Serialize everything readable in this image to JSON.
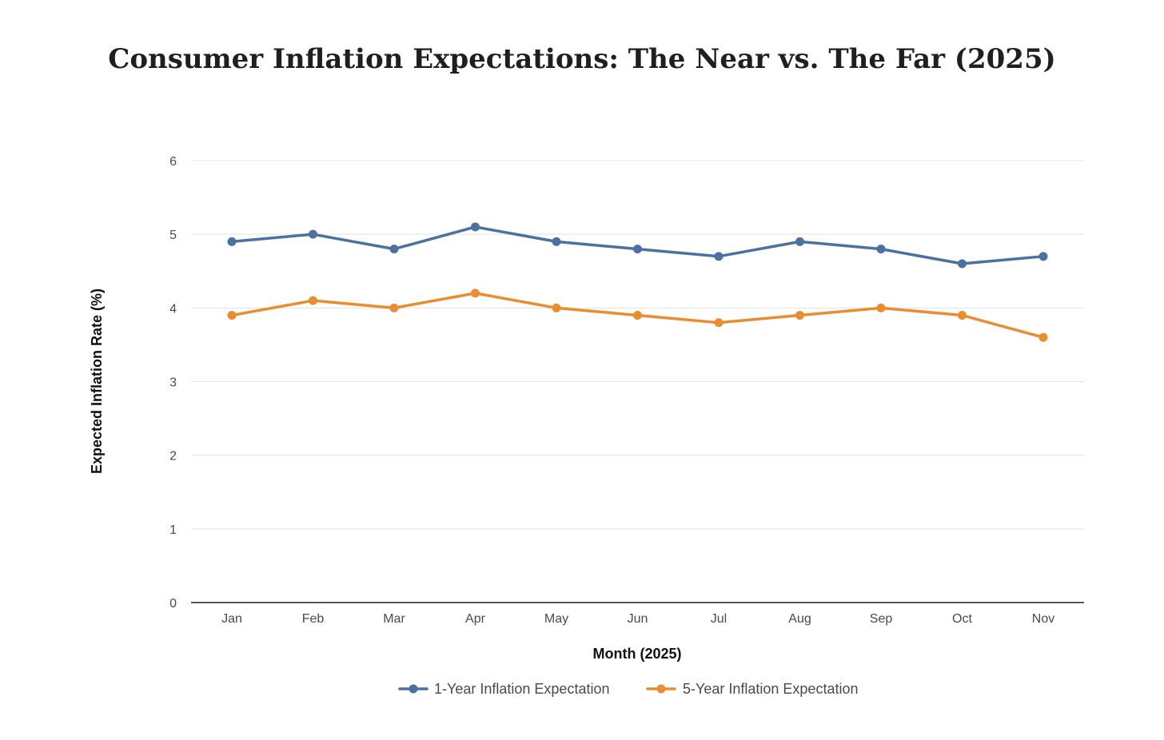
{
  "chart_data": {
    "type": "line",
    "title": "Consumer Inflation Expectations: The Near vs. The Far (2025)",
    "xlabel": "Month (2025)",
    "ylabel": "Expected Inflation Rate (%)",
    "categories": [
      "Jan",
      "Feb",
      "Mar",
      "Apr",
      "May",
      "Jun",
      "Jul",
      "Aug",
      "Sep",
      "Oct",
      "Nov"
    ],
    "ylim": [
      0,
      6
    ],
    "yticks": [
      0,
      1,
      2,
      3,
      4,
      5,
      6
    ],
    "grid": true,
    "legend_position": "bottom",
    "series": [
      {
        "name": "1-Year Inflation Expectation",
        "color": "#4a72a0",
        "values": [
          4.9,
          5.0,
          4.8,
          5.1,
          4.9,
          4.8,
          4.7,
          4.9,
          4.8,
          4.6,
          4.7
        ]
      },
      {
        "name": "5-Year Inflation Expectation",
        "color": "#ea8d30",
        "values": [
          3.9,
          4.1,
          4.0,
          4.2,
          4.0,
          3.9,
          3.8,
          3.9,
          4.0,
          3.9,
          3.6
        ]
      }
    ]
  }
}
